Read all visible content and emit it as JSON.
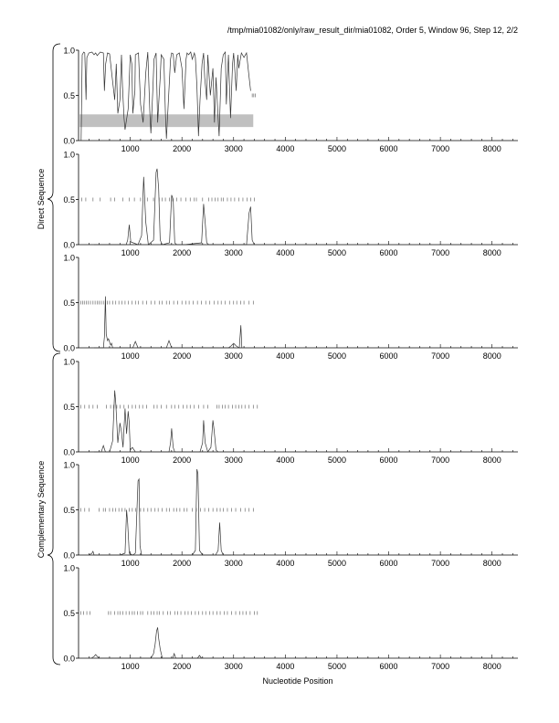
{
  "header": {
    "title": "/tmp/mia01082/only/raw_result_dir/mia01082, Order 5, Window 96, Step 12, 2/2"
  },
  "labels": {
    "direct": "Direct Sequence",
    "complementary": "Complementary Sequence",
    "xlabel": "Nucleotide Position"
  },
  "colors": {
    "line": "#333333",
    "shade": "#c0c0c0",
    "axis": "#000000"
  },
  "chart_data": {
    "type": "line",
    "xlabel": "Nucleotide Position",
    "xlim": [
      0,
      8500
    ],
    "ylim": [
      0,
      1.0
    ],
    "x_ticks": [
      1000,
      2000,
      3000,
      4000,
      5000,
      6000,
      7000,
      8000
    ],
    "y_ticks": [
      0.0,
      0.5,
      1.0
    ],
    "groups": [
      {
        "label": "Direct Sequence",
        "panels": [
          0,
          1,
          2
        ]
      },
      {
        "label": "Complementary Sequence",
        "panels": [
          3,
          4,
          5
        ]
      }
    ],
    "panels": [
      {
        "frame": 1,
        "strand": "direct",
        "shaded_band": {
          "x": [
            20,
            3380
          ],
          "y": [
            0.15,
            0.29
          ]
        },
        "orf_level": 0.5,
        "orf_marks": [
          3360,
          3390,
          3420
        ],
        "series": {
          "x": [
            50,
            70,
            100,
            120,
            145,
            160,
            200,
            260,
            300,
            330,
            360,
            420,
            480,
            500,
            525,
            560,
            600,
            650,
            700,
            730,
            760,
            800,
            830,
            850,
            880,
            900,
            960,
            1000,
            1030,
            1050,
            1090,
            1100,
            1160,
            1200,
            1250,
            1300,
            1340,
            1380,
            1400,
            1440,
            1460,
            1500,
            1530,
            1580,
            1600,
            1650,
            1680,
            1700,
            1730,
            1780,
            1800,
            1830,
            1860,
            1900,
            1950,
            2000,
            2040,
            2080,
            2100,
            2130,
            2170,
            2200,
            2240,
            2260,
            2290,
            2320,
            2350,
            2390,
            2420,
            2440,
            2480,
            2500,
            2550,
            2600,
            2630,
            2660,
            2700,
            2720,
            2760,
            2800,
            2840,
            2860,
            2900,
            2940,
            2980,
            3000,
            3050,
            3080,
            3100,
            3150,
            3200,
            3250,
            3290,
            3330
          ],
          "y": [
            0.0,
            0.95,
            0.98,
            0.97,
            0.45,
            0.92,
            0.97,
            0.98,
            0.95,
            0.97,
            0.94,
            0.98,
            0.97,
            0.55,
            0.85,
            0.97,
            0.96,
            0.7,
            0.45,
            0.85,
            0.3,
            0.45,
            0.95,
            0.6,
            0.25,
            0.12,
            0.35,
            0.95,
            0.85,
            0.3,
            0.55,
            0.95,
            0.97,
            0.4,
            0.2,
            0.75,
            0.98,
            0.3,
            0.08,
            0.6,
            0.9,
            0.97,
            0.2,
            0.7,
            0.95,
            0.9,
            0.3,
            0.02,
            0.35,
            0.9,
            0.97,
            0.96,
            0.75,
            0.95,
            0.97,
            0.8,
            0.35,
            0.9,
            0.97,
            0.95,
            0.98,
            0.9,
            0.97,
            0.92,
            0.6,
            0.05,
            0.45,
            0.85,
            0.97,
            0.7,
            0.45,
            0.95,
            0.5,
            0.8,
            0.2,
            0.7,
            0.25,
            0.05,
            0.8,
            0.95,
            0.98,
            0.4,
            0.95,
            0.25,
            0.85,
            0.97,
            0.55,
            0.95,
            0.8,
            0.97,
            0.92,
            0.97,
            0.75,
            0.55
          ]
        }
      },
      {
        "frame": 2,
        "strand": "direct",
        "orf_level": 0.5,
        "orf_marks": [
          60,
          140,
          280,
          420,
          620,
          700,
          860,
          980,
          1080,
          1200,
          1330,
          1450,
          1560,
          1620,
          1680,
          1760,
          1820,
          1900,
          1980,
          2080,
          2160,
          2240,
          2280,
          2400,
          2520,
          2580,
          2640,
          2700,
          2760,
          2800,
          2880,
          2950,
          3020,
          3100,
          3180,
          3260,
          3330,
          3400
        ],
        "series": {
          "x": [
            300,
            920,
            950,
            980,
            1010,
            1150,
            1220,
            1260,
            1300,
            1350,
            1450,
            1500,
            1520,
            1550,
            1580,
            1620,
            1760,
            1800,
            1830,
            1860,
            1900,
            2050,
            2380,
            2420,
            2450,
            2480,
            2520,
            3050,
            3250,
            3300,
            3330,
            3360,
            3400
          ],
          "y": [
            0.0,
            0.0,
            0.05,
            0.22,
            0.03,
            0.0,
            0.1,
            0.75,
            0.25,
            0.0,
            0.05,
            0.8,
            0.84,
            0.62,
            0.05,
            0.0,
            0.02,
            0.55,
            0.5,
            0.02,
            0.0,
            0.0,
            0.02,
            0.45,
            0.25,
            0.02,
            0.0,
            0.0,
            0.0,
            0.35,
            0.42,
            0.05,
            0.0
          ]
        }
      },
      {
        "frame": 3,
        "strand": "direct",
        "orf_level": 0.5,
        "orf_marks": [
          40,
          80,
          110,
          150,
          190,
          230,
          280,
          320,
          360,
          400,
          440,
          480,
          520,
          560,
          600,
          660,
          720,
          780,
          840,
          900,
          960,
          1030,
          1100,
          1160,
          1240,
          1320,
          1400,
          1480,
          1560,
          1620,
          1700,
          1760,
          1840,
          1920,
          2000,
          2080,
          2140,
          2220,
          2300,
          2380,
          2460,
          2540,
          2620,
          2700,
          2760,
          2840,
          2920,
          3000,
          3060,
          3140,
          3200,
          3300,
          3380
        ],
        "series": {
          "x": [
            300,
            480,
            500,
            520,
            535,
            560,
            580,
            620,
            640,
            660,
            1050,
            1100,
            1150,
            1700,
            1750,
            1800,
            2900,
            2950,
            3000,
            3050,
            3110,
            3140,
            3160
          ],
          "y": [
            0.0,
            0.0,
            0.12,
            0.57,
            0.15,
            0.08,
            0.1,
            0.03,
            0.05,
            0.0,
            0.0,
            0.07,
            0.0,
            0.0,
            0.08,
            0.0,
            0.0,
            0.02,
            0.05,
            0.02,
            0.0,
            0.25,
            0.0
          ]
        }
      },
      {
        "frame": 1,
        "strand": "complementary",
        "orf_level": 0.5,
        "orf_marks": [
          40,
          120,
          200,
          280,
          360,
          540,
          620,
          680,
          740,
          800,
          880,
          960,
          1040,
          1100,
          1180,
          1240,
          1320,
          1460,
          1520,
          1600,
          1700,
          1800,
          1860,
          1940,
          2020,
          2100,
          2160,
          2240,
          2320,
          2420,
          2500,
          2680,
          2720,
          2780,
          2840,
          2900,
          2980,
          3040,
          3100,
          3160,
          3220,
          3300,
          3380,
          3460
        ],
        "series": {
          "x": [
            300,
            440,
            480,
            520,
            600,
            660,
            700,
            720,
            760,
            800,
            830,
            860,
            900,
            930,
            960,
            980,
            1000,
            1040,
            1100,
            1750,
            1780,
            1800,
            1830,
            1860,
            2050,
            2350,
            2400,
            2420,
            2450,
            2500,
            2560,
            2600,
            2620,
            2660,
            2700
          ],
          "y": [
            0.0,
            0.0,
            0.07,
            0.0,
            0.0,
            0.12,
            0.68,
            0.55,
            0.1,
            0.32,
            0.22,
            0.05,
            0.48,
            0.2,
            0.45,
            0.32,
            0.02,
            0.05,
            0.0,
            0.0,
            0.1,
            0.26,
            0.05,
            0.0,
            0.0,
            0.0,
            0.1,
            0.35,
            0.1,
            0.0,
            0.05,
            0.35,
            0.25,
            0.02,
            0.0
          ]
        }
      },
      {
        "frame": 2,
        "strand": "complementary",
        "orf_level": 0.5,
        "orf_marks": [
          40,
          120,
          200,
          400,
          480,
          520,
          600,
          660,
          720,
          780,
          840,
          900,
          980,
          1040,
          1100,
          1200,
          1260,
          1340,
          1400,
          1480,
          1540,
          1620,
          1700,
          1760,
          1840,
          1900,
          1960,
          2040,
          2100,
          2200,
          2280,
          2360,
          2440,
          2520,
          2600,
          2680,
          2740,
          2800,
          2880,
          2960,
          3040,
          3140,
          3220,
          3300,
          3380
        ],
        "series": {
          "x": [
            200,
            260,
            280,
            300,
            800,
            900,
            930,
            950,
            980,
            1050,
            1100,
            1150,
            1170,
            1190,
            1220,
            1300,
            1800,
            2200,
            2260,
            2290,
            2310,
            2340,
            2400,
            2650,
            2700,
            2730,
            2760,
            2800,
            2900,
            2950
          ],
          "y": [
            0.0,
            0.02,
            0.04,
            0.0,
            0.0,
            0.02,
            0.5,
            0.35,
            0.02,
            0.0,
            0.02,
            0.82,
            0.84,
            0.1,
            0.0,
            0.0,
            0.0,
            0.0,
            0.05,
            0.95,
            0.9,
            0.05,
            0.0,
            0.0,
            0.05,
            0.36,
            0.05,
            0.0,
            0.0,
            0.0
          ]
        }
      },
      {
        "frame": 3,
        "strand": "complementary",
        "orf_level": 0.5,
        "orf_marks": [
          40,
          100,
          160,
          220,
          580,
          620,
          700,
          760,
          800,
          860,
          920,
          980,
          1040,
          1080,
          1140,
          1200,
          1240,
          1340,
          1400,
          1460,
          1520,
          1560,
          1640,
          1720,
          1780,
          1860,
          1920,
          1980,
          2060,
          2120,
          2180,
          2260,
          2320,
          2400,
          2460,
          2540,
          2600,
          2680,
          2740,
          2820,
          2880,
          2960,
          3040,
          3120,
          3180,
          3240,
          3320,
          3400,
          3460
        ],
        "series": {
          "x": [
            250,
            300,
            330,
            360,
            400,
            1400,
            1450,
            1480,
            1510,
            1530,
            1550,
            1580,
            1620,
            1700,
            1820,
            1850,
            1880,
            2300,
            2340,
            2380
          ],
          "y": [
            0.0,
            0.02,
            0.04,
            0.02,
            0.0,
            0.0,
            0.05,
            0.15,
            0.3,
            0.34,
            0.22,
            0.1,
            0.0,
            0.0,
            0.0,
            0.05,
            0.0,
            0.0,
            0.03,
            0.0
          ]
        }
      }
    ]
  }
}
